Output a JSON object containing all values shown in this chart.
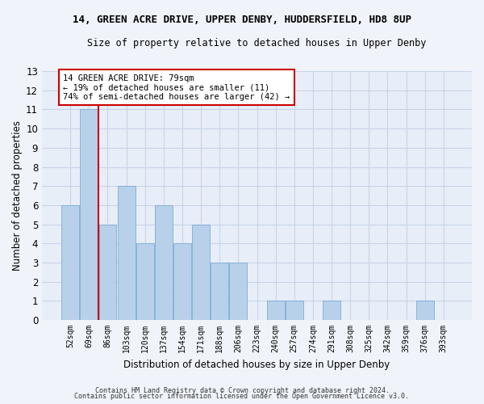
{
  "title1": "14, GREEN ACRE DRIVE, UPPER DENBY, HUDDERSFIELD, HD8 8UP",
  "title2": "Size of property relative to detached houses in Upper Denby",
  "xlabel": "Distribution of detached houses by size in Upper Denby",
  "ylabel": "Number of detached properties",
  "categories": [
    "52sqm",
    "69sqm",
    "86sqm",
    "103sqm",
    "120sqm",
    "137sqm",
    "154sqm",
    "171sqm",
    "188sqm",
    "206sqm",
    "223sqm",
    "240sqm",
    "257sqm",
    "274sqm",
    "291sqm",
    "308sqm",
    "325sqm",
    "342sqm",
    "359sqm",
    "376sqm",
    "393sqm"
  ],
  "values": [
    6,
    11,
    5,
    7,
    4,
    6,
    4,
    5,
    3,
    3,
    0,
    1,
    1,
    0,
    1,
    0,
    0,
    0,
    0,
    1,
    0
  ],
  "bar_color": "#b8d0ea",
  "bar_edge_color": "#7aadd4",
  "grid_color": "#c8d4e8",
  "bg_color": "#e8eef8",
  "red_line_x": 1.5,
  "annotation_line1": "14 GREEN ACRE DRIVE: 79sqm",
  "annotation_line2": "← 19% of detached houses are smaller (11)",
  "annotation_line3": "74% of semi-detached houses are larger (42) →",
  "annotation_box_color": "#ffffff",
  "annotation_box_edge": "#cc0000",
  "ylim": [
    0,
    13
  ],
  "yticks": [
    0,
    1,
    2,
    3,
    4,
    5,
    6,
    7,
    8,
    9,
    10,
    11,
    12,
    13
  ],
  "footer1": "Contains HM Land Registry data © Crown copyright and database right 2024.",
  "footer2": "Contains public sector information licensed under the Open Government Licence v3.0."
}
